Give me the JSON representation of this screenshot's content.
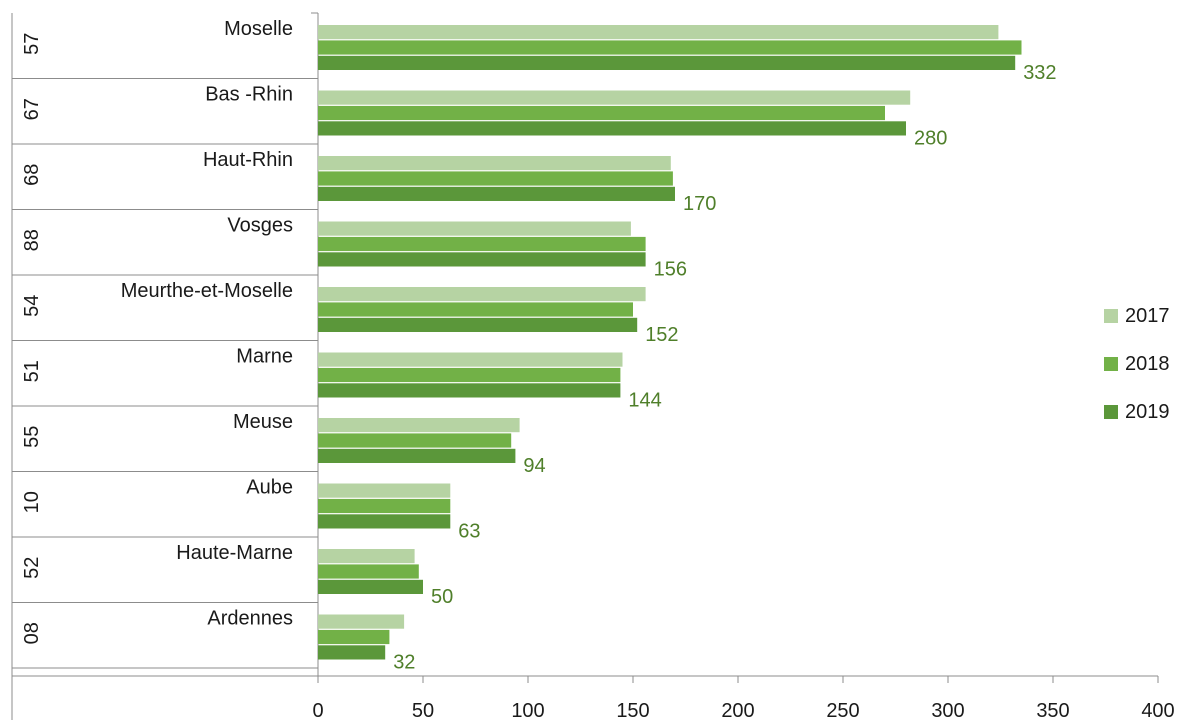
{
  "chart_data": {
    "type": "bar",
    "orientation": "horizontal",
    "title": "",
    "xlabel": "",
    "ylabel": "",
    "xlim": [
      0,
      400
    ],
    "ticks": [
      "0",
      "50",
      "100",
      "150",
      "200",
      "250",
      "300",
      "350",
      "400"
    ],
    "grid": false,
    "legend_position": "right",
    "categories": [
      {
        "code": "57",
        "name": "Moselle"
      },
      {
        "code": "67",
        "name": "Bas -Rhin"
      },
      {
        "code": "68",
        "name": "Haut-Rhin"
      },
      {
        "code": "88",
        "name": "Vosges"
      },
      {
        "code": "54",
        "name": "Meurthe-et-Moselle"
      },
      {
        "code": "51",
        "name": "Marne"
      },
      {
        "code": "55",
        "name": "Meuse"
      },
      {
        "code": "10",
        "name": "Aube"
      },
      {
        "code": "52",
        "name": "Haute-Marne"
      },
      {
        "code": "08",
        "name": "Ardennes"
      }
    ],
    "series": [
      {
        "name": "2017",
        "color": "#b6d3a3",
        "values": [
          324,
          282,
          168,
          149,
          156,
          145,
          96,
          63,
          46,
          41
        ]
      },
      {
        "name": "2018",
        "color": "#72b147",
        "values": [
          335,
          270,
          169,
          156,
          150,
          144,
          92,
          63,
          48,
          34
        ]
      },
      {
        "name": "2019",
        "color": "#5b973a",
        "values": [
          332,
          280,
          170,
          156,
          152,
          144,
          94,
          63,
          50,
          32
        ]
      }
    ],
    "data_labels": [
      "332",
      "280",
      "170",
      "156",
      "152",
      "144",
      "94",
      "63",
      "50",
      "32"
    ],
    "data_label_color": "#4f7f2a"
  }
}
